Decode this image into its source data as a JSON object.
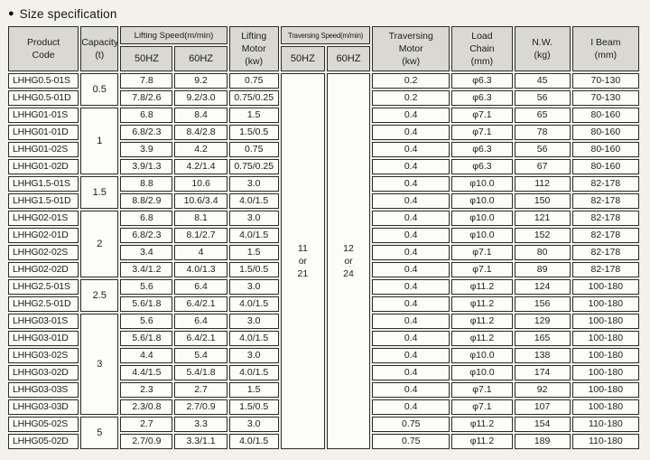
{
  "title": "Size specification",
  "bullet_glyph": "●",
  "table": {
    "headers": {
      "product_code": "Product\nCode",
      "capacity": "Capacity\n(t)",
      "lifting_speed_group": "Lifting Speed(m/min)",
      "lifting_50hz": "50HZ",
      "lifting_60hz": "60HZ",
      "lifting_motor": "Lifting\nMotor\n(kw)",
      "traversing_speed_group": "Traversing Speed(m/min)",
      "traversing_50hz": "50HZ",
      "traversing_60hz": "60HZ",
      "traversing_motor": "Traversing\nMotor\n(kw)",
      "load_chain": "Load\nChain\n(mm)",
      "nw": "N.W.\n(kg)",
      "i_beam": "I Beam\n(mm)"
    },
    "traversing_speed_50hz": "11\nor\n21",
    "traversing_speed_60hz": "12\nor\n24",
    "capacity_groups": [
      {
        "value": "0.5",
        "span": 2
      },
      {
        "value": "1",
        "span": 4
      },
      {
        "value": "1.5",
        "span": 2
      },
      {
        "value": "2",
        "span": 4
      },
      {
        "value": "2.5",
        "span": 2
      },
      {
        "value": "3",
        "span": 6
      },
      {
        "value": "5",
        "span": 2
      }
    ],
    "rows": [
      {
        "code": "LHHG0.5-01S",
        "lift_50hz": "7.8",
        "lift_60hz": "9.2",
        "lifting_motor": "0.75",
        "traversing_motor": "0.2",
        "load_chain": "φ6.3",
        "nw": "45",
        "i_beam": "70-130"
      },
      {
        "code": "LHHG0.5-01D",
        "lift_50hz": "7.8/2.6",
        "lift_60hz": "9.2/3.0",
        "lifting_motor": "0.75/0.25",
        "traversing_motor": "0.2",
        "load_chain": "φ6.3",
        "nw": "56",
        "i_beam": "70-130"
      },
      {
        "code": "LHHG01-01S",
        "lift_50hz": "6.8",
        "lift_60hz": "8.4",
        "lifting_motor": "1.5",
        "traversing_motor": "0.4",
        "load_chain": "φ7.1",
        "nw": "65",
        "i_beam": "80-160"
      },
      {
        "code": "LHHG01-01D",
        "lift_50hz": "6.8/2.3",
        "lift_60hz": "8.4/2.8",
        "lifting_motor": "1.5/0.5",
        "traversing_motor": "0.4",
        "load_chain": "φ7.1",
        "nw": "78",
        "i_beam": "80-160"
      },
      {
        "code": "LHHG01-02S",
        "lift_50hz": "3.9",
        "lift_60hz": "4.2",
        "lifting_motor": "0.75",
        "traversing_motor": "0.4",
        "load_chain": "φ6.3",
        "nw": "56",
        "i_beam": "80-160"
      },
      {
        "code": "LHHG01-02D",
        "lift_50hz": "3.9/1.3",
        "lift_60hz": "4.2/1.4",
        "lifting_motor": "0.75/0.25",
        "traversing_motor": "0.4",
        "load_chain": "φ6.3",
        "nw": "67",
        "i_beam": "80-160"
      },
      {
        "code": "LHHG1.5-01S",
        "lift_50hz": "8.8",
        "lift_60hz": "10.6",
        "lifting_motor": "3.0",
        "traversing_motor": "0.4",
        "load_chain": "φ10.0",
        "nw": "112",
        "i_beam": "82-178"
      },
      {
        "code": "LHHG1.5-01D",
        "lift_50hz": "8.8/2.9",
        "lift_60hz": "10.6/3.4",
        "lifting_motor": "4.0/1.5",
        "traversing_motor": "0.4",
        "load_chain": "φ10.0",
        "nw": "150",
        "i_beam": "82-178"
      },
      {
        "code": "LHHG02-01S",
        "lift_50hz": "6.8",
        "lift_60hz": "8.1",
        "lifting_motor": "3.0",
        "traversing_motor": "0.4",
        "load_chain": "φ10.0",
        "nw": "121",
        "i_beam": "82-178"
      },
      {
        "code": "LHHG02-01D",
        "lift_50hz": "6.8/2.3",
        "lift_60hz": "8.1/2.7",
        "lifting_motor": "4.0/1.5",
        "traversing_motor": "0.4",
        "load_chain": "φ10.0",
        "nw": "152",
        "i_beam": "82-178"
      },
      {
        "code": "LHHG02-02S",
        "lift_50hz": "3.4",
        "lift_60hz": "4",
        "lifting_motor": "1.5",
        "traversing_motor": "0.4",
        "load_chain": "φ7.1",
        "nw": "80",
        "i_beam": "82-178"
      },
      {
        "code": "LHHG02-02D",
        "lift_50hz": "3.4/1.2",
        "lift_60hz": "4.0/1.3",
        "lifting_motor": "1.5/0.5",
        "traversing_motor": "0.4",
        "load_chain": "φ7.1",
        "nw": "89",
        "i_beam": "82-178"
      },
      {
        "code": "LHHG2.5-01S",
        "lift_50hz": "5.6",
        "lift_60hz": "6.4",
        "lifting_motor": "3.0",
        "traversing_motor": "0.4",
        "load_chain": "φ11.2",
        "nw": "124",
        "i_beam": "100-180"
      },
      {
        "code": "LHHG2.5-01D",
        "lift_50hz": "5.6/1.8",
        "lift_60hz": "6.4/2.1",
        "lifting_motor": "4.0/1.5",
        "traversing_motor": "0.4",
        "load_chain": "φ11.2",
        "nw": "156",
        "i_beam": "100-180"
      },
      {
        "code": "LHHG03-01S",
        "lift_50hz": "5.6",
        "lift_60hz": "6.4",
        "lifting_motor": "3.0",
        "traversing_motor": "0.4",
        "load_chain": "φ11.2",
        "nw": "129",
        "i_beam": "100-180"
      },
      {
        "code": "LHHG03-01D",
        "lift_50hz": "5.6/1.8",
        "lift_60hz": "6.4/2.1",
        "lifting_motor": "4.0/1.5",
        "traversing_motor": "0.4",
        "load_chain": "φ11.2",
        "nw": "165",
        "i_beam": "100-180"
      },
      {
        "code": "LHHG03-02S",
        "lift_50hz": "4.4",
        "lift_60hz": "5.4",
        "lifting_motor": "3.0",
        "traversing_motor": "0.4",
        "load_chain": "φ10.0",
        "nw": "138",
        "i_beam": "100-180"
      },
      {
        "code": "LHHG03-02D",
        "lift_50hz": "4.4/1.5",
        "lift_60hz": "5.4/1.8",
        "lifting_motor": "4.0/1.5",
        "traversing_motor": "0.4",
        "load_chain": "φ10.0",
        "nw": "174",
        "i_beam": "100-180"
      },
      {
        "code": "LHHG03-03S",
        "lift_50hz": "2.3",
        "lift_60hz": "2.7",
        "lifting_motor": "1.5",
        "traversing_motor": "0.4",
        "load_chain": "φ7.1",
        "nw": "92",
        "i_beam": "100-180"
      },
      {
        "code": "LHHG03-03D",
        "lift_50hz": "2.3/0.8",
        "lift_60hz": "2.7/0.9",
        "lifting_motor": "1.5/0.5",
        "traversing_motor": "0.4",
        "load_chain": "φ7.1",
        "nw": "107",
        "i_beam": "100-180"
      },
      {
        "code": "LHHG05-02S",
        "lift_50hz": "2.7",
        "lift_60hz": "3.3",
        "lifting_motor": "3.0",
        "traversing_motor": "0.75",
        "load_chain": "φ11.2",
        "nw": "154",
        "i_beam": "110-180"
      },
      {
        "code": "LHHG05-02D",
        "lift_50hz": "2.7/0.9",
        "lift_60hz": "3.3/1.1",
        "lifting_motor": "4.0/1.5",
        "traversing_motor": "0.75",
        "load_chain": "φ11.2",
        "nw": "189",
        "i_beam": "110-180"
      }
    ]
  }
}
